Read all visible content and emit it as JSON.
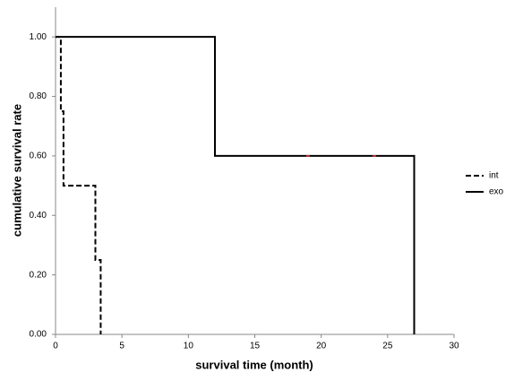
{
  "chart_data": {
    "type": "line",
    "step": true,
    "x_label": "survival time (month)",
    "y_label": "cumulative survival rate",
    "xlim": [
      0,
      30
    ],
    "xticks": [
      0,
      5,
      10,
      15,
      20,
      25,
      30
    ],
    "ylim": [
      0,
      1.1
    ],
    "yticks": [
      {
        "value": 0,
        "label": "0.00"
      },
      {
        "value": 0.2,
        "label": "0.20"
      },
      {
        "value": 0.4,
        "label": "0.40"
      },
      {
        "value": 0.6,
        "label": "0.60"
      },
      {
        "value": 0.8,
        "label": "0.80"
      },
      {
        "value": 1,
        "label": "1.00"
      }
    ],
    "grid": false,
    "legend": "right",
    "series": [
      {
        "name": "int",
        "color": "#000000",
        "dash": true,
        "x": [
          0,
          0.4,
          0.4,
          0.6,
          0.6,
          3,
          3,
          3.4,
          3.4
        ],
        "values": [
          1,
          1,
          0.75,
          0.75,
          0.5,
          0.5,
          0.25,
          0.25,
          0
        ]
      },
      {
        "name": "exo",
        "color": "#000000",
        "dash": false,
        "x": [
          0,
          12,
          12,
          27,
          27
        ],
        "values": [
          1,
          1,
          0.6,
          0.6,
          0
        ]
      }
    ],
    "censor_marks": {
      "color": "#e03030",
      "x": [
        19,
        24
      ],
      "values": [
        0.6,
        0.6
      ]
    }
  }
}
